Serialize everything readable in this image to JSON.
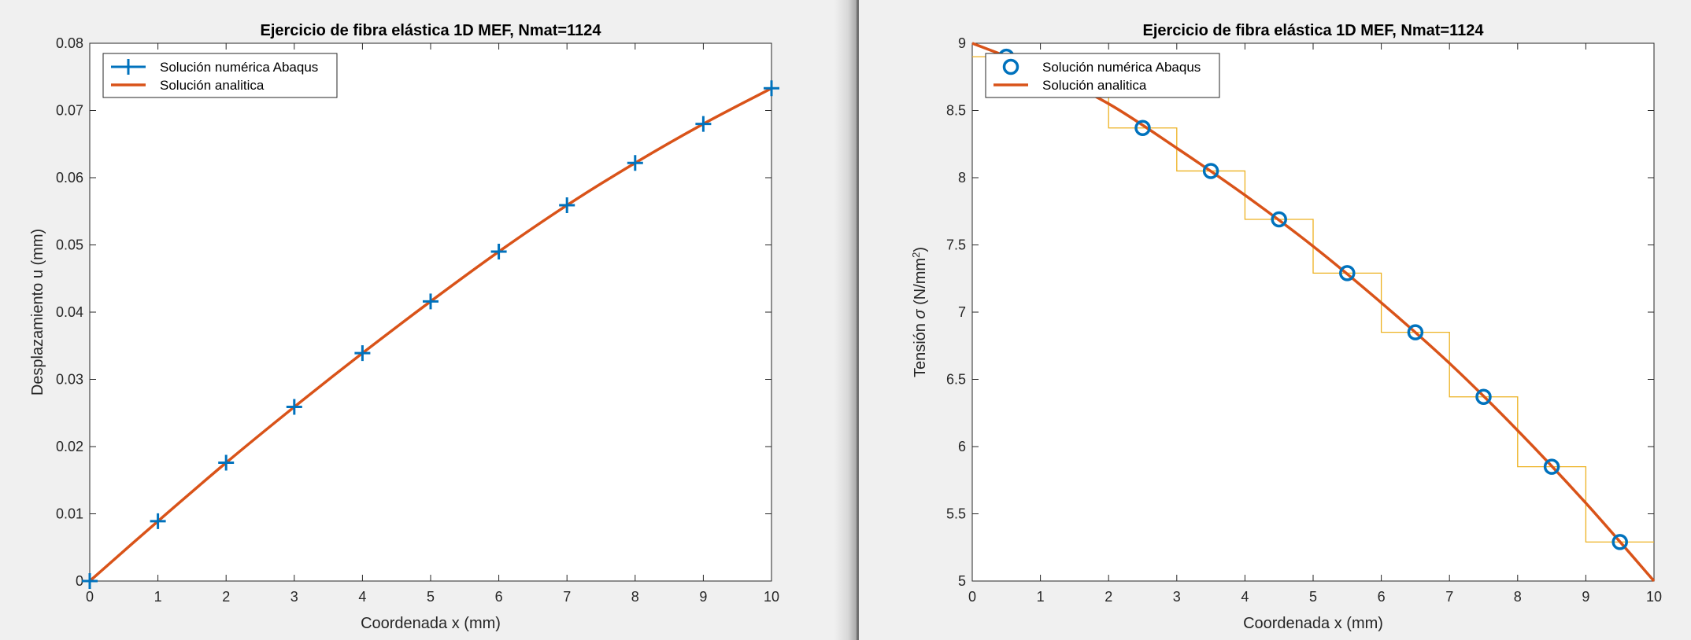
{
  "chart_data": [
    {
      "type": "line",
      "title": "Ejercicio de fibra elástica 1D MEF, Nmat=1124",
      "xlabel": "Coordenada x (mm)",
      "ylabel": "Desplazamiento u (mm)",
      "xlim": [
        0,
        10
      ],
      "ylim": [
        0,
        0.08
      ],
      "xticks": [
        0,
        1,
        2,
        3,
        4,
        5,
        6,
        7,
        8,
        9,
        10
      ],
      "yticks": [
        0,
        0.01,
        0.02,
        0.03,
        0.04,
        0.05,
        0.06,
        0.07,
        0.08
      ],
      "xtick_labels": [
        "0",
        "1",
        "2",
        "3",
        "4",
        "5",
        "6",
        "7",
        "8",
        "9",
        "10"
      ],
      "ytick_labels": [
        "0",
        "0.01",
        "0.02",
        "0.03",
        "0.04",
        "0.05",
        "0.06",
        "0.07",
        "0.08"
      ],
      "grid": false,
      "legend_position": "top-left",
      "series": [
        {
          "name": "Solución numérica Abaqus",
          "style": "marker",
          "marker": "plus",
          "color": "#0072BD",
          "x": [
            0,
            1,
            2,
            3,
            4,
            5,
            6,
            7,
            8,
            9,
            10
          ],
          "y": [
            0,
            0.0089,
            0.0176,
            0.0259,
            0.0339,
            0.0416,
            0.049,
            0.0559,
            0.0622,
            0.068,
            0.0733
          ]
        },
        {
          "name": "Solución analitica",
          "style": "line",
          "color": "#D95319",
          "x": [
            0,
            1,
            2,
            3,
            4,
            5,
            6,
            7,
            8,
            9,
            10
          ],
          "y": [
            0,
            0.0089,
            0.0176,
            0.0259,
            0.0339,
            0.0416,
            0.049,
            0.0559,
            0.0622,
            0.068,
            0.0733
          ]
        }
      ]
    },
    {
      "type": "line",
      "title": "Ejercicio de fibra elástica 1D MEF, Nmat=1124",
      "xlabel": "Coordenada x (mm)",
      "ylabel_prefix": "Tensión ",
      "ylabel_symbol": "σ",
      "ylabel_units": " (N/mm",
      "ylabel_superscript": "2",
      "ylabel_close": ")",
      "xlim": [
        0,
        10
      ],
      "ylim": [
        5,
        9
      ],
      "xticks": [
        0,
        1,
        2,
        3,
        4,
        5,
        6,
        7,
        8,
        9,
        10
      ],
      "yticks": [
        5,
        5.5,
        6,
        6.5,
        7,
        7.5,
        8,
        8.5,
        9
      ],
      "xtick_labels": [
        "0",
        "1",
        "2",
        "3",
        "4",
        "5",
        "6",
        "7",
        "8",
        "9",
        "10"
      ],
      "ytick_labels": [
        "5",
        "5.5",
        "6",
        "6.5",
        "7",
        "7.5",
        "8",
        "8.5",
        "9"
      ],
      "grid": false,
      "legend_position": "top-left",
      "series": [
        {
          "name": "Solución numérica Abaqus",
          "style": "marker",
          "marker": "circle",
          "color": "#0072BD",
          "x": [
            0.5,
            1.5,
            2.5,
            3.5,
            4.5,
            5.5,
            6.5,
            7.5,
            8.5,
            9.5
          ],
          "y": [
            8.9,
            8.68,
            8.37,
            8.05,
            7.69,
            7.29,
            6.85,
            6.37,
            5.85,
            5.29
          ]
        },
        {
          "name": "Solución analitica",
          "style": "line",
          "color": "#D95319",
          "x": [
            0,
            1,
            2,
            3,
            4,
            5,
            6,
            7,
            8,
            9,
            10
          ],
          "y": [
            9.0,
            8.8,
            8.55,
            8.22,
            7.87,
            7.49,
            7.07,
            6.62,
            6.12,
            5.58,
            5.0
          ]
        },
        {
          "style": "step",
          "color": "#EDB120",
          "x": [
            0.5,
            1.5,
            2.5,
            3.5,
            4.5,
            5.5,
            6.5,
            7.5,
            8.5,
            9.5
          ],
          "y": [
            8.9,
            8.68,
            8.37,
            8.05,
            7.69,
            7.29,
            6.85,
            6.37,
            5.85,
            5.29
          ]
        }
      ]
    }
  ]
}
